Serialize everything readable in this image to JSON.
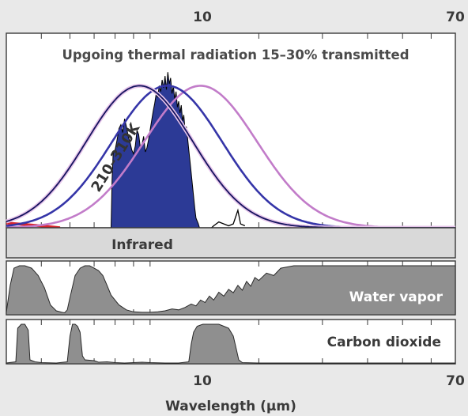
{
  "chart_data": {
    "type": "area",
    "x_scale": "log",
    "x_range": [
      4,
      70
    ],
    "xlabel": "Wavelength (µm)",
    "top_ticks": [
      "10",
      "70"
    ],
    "bottom_ticks": [
      "10",
      "70"
    ],
    "colors": {
      "frame": "#3a3a3a",
      "black_body_210K": "#c27cc9",
      "black_body_260K": "#3535a8",
      "black_body_310K": "#14145e",
      "transmitted": "#2c3a96",
      "infrared_band": "#d9d9d9",
      "absorption_fill": "#8f8f8f",
      "red_curve": "#d8252c"
    },
    "panels": {
      "emission": {
        "title": "Upgoing thermal radiation 15–30% transmitted",
        "curve_label": "210–310K",
        "ylim": [
          0,
          1
        ],
        "series": [
          {
            "key": "210K",
            "peak_um": 13.8,
            "peak": 0.73,
            "sigma": 0.36
          },
          {
            "key": "260K",
            "peak_um": 11.15,
            "peak": 0.73,
            "sigma": 0.35
          },
          {
            "key": "310K",
            "peak_um": 9.35,
            "peak": 0.73,
            "sigma": 0.34
          }
        ],
        "transmitted": {
          "x": [
            7.8,
            7.85,
            7.9,
            8.0,
            8.1,
            8.2,
            8.3,
            8.4,
            8.5,
            8.6,
            8.7,
            8.8,
            8.9,
            9.0,
            9.1,
            9.2,
            9.3,
            9.4,
            9.5,
            9.6,
            9.7,
            9.8,
            9.9,
            10.0,
            10.1,
            10.2,
            10.3,
            10.4,
            10.5,
            10.6,
            10.7,
            10.8,
            10.9,
            11.0,
            11.1,
            11.2,
            11.3,
            11.4,
            11.5,
            11.6,
            11.7,
            11.8,
            11.9,
            12.0,
            12.1,
            12.2,
            12.3,
            12.4,
            12.5,
            12.6,
            12.7,
            12.8,
            12.9,
            13.0,
            13.1,
            13.2,
            13.3,
            13.4,
            13.6,
            13.7
          ],
          "y": [
            0,
            0.25,
            0.38,
            0.4,
            0.45,
            0.51,
            0.53,
            0.49,
            0.56,
            0.52,
            0.47,
            0.44,
            0.4,
            0.38,
            0.42,
            0.5,
            0.48,
            0.41,
            0.43,
            0.47,
            0.39,
            0.41,
            0.45,
            0.5,
            0.55,
            0.6,
            0.64,
            0.69,
            0.67,
            0.73,
            0.7,
            0.76,
            0.72,
            0.78,
            0.71,
            0.8,
            0.74,
            0.77,
            0.69,
            0.73,
            0.66,
            0.7,
            0.62,
            0.65,
            0.59,
            0.63,
            0.55,
            0.58,
            0.5,
            0.52,
            0.46,
            0.4,
            0.34,
            0.28,
            0.22,
            0.16,
            0.1,
            0.05,
            0.02,
            0
          ]
        }
      },
      "infrared": {
        "label": "Infrared"
      },
      "water_vapor": {
        "label": "Water vapor",
        "absorption": {
          "x": [
            4.0,
            4.1,
            4.2,
            4.35,
            4.5,
            4.7,
            4.9,
            5.1,
            5.3,
            5.5,
            5.7,
            5.8,
            5.9,
            6.0,
            6.2,
            6.4,
            6.6,
            6.8,
            7.0,
            7.2,
            7.4,
            7.6,
            7.8,
            8.2,
            8.6,
            9.0,
            9.5,
            10.0,
            10.5,
            11.0,
            11.5,
            12.0,
            12.5,
            13.0,
            13.4,
            13.8,
            14.2,
            14.6,
            15.0,
            15.5,
            16.0,
            16.5,
            17.0,
            17.5,
            18.0,
            18.5,
            19.0,
            19.5,
            20,
            21,
            22,
            23,
            25,
            30,
            40,
            50,
            60,
            70
          ],
          "y": [
            0.05,
            0.6,
            0.95,
            1.0,
            1.0,
            0.95,
            0.8,
            0.55,
            0.2,
            0.08,
            0.05,
            0.04,
            0.1,
            0.35,
            0.8,
            0.95,
            1.0,
            1.0,
            0.95,
            0.9,
            0.8,
            0.6,
            0.4,
            0.2,
            0.1,
            0.06,
            0.05,
            0.05,
            0.06,
            0.08,
            0.12,
            0.1,
            0.15,
            0.22,
            0.18,
            0.3,
            0.25,
            0.38,
            0.3,
            0.46,
            0.38,
            0.52,
            0.45,
            0.6,
            0.5,
            0.68,
            0.58,
            0.76,
            0.7,
            0.85,
            0.8,
            0.95,
            1.0,
            1.0,
            1.0,
            1.0,
            1.0,
            1.0
          ]
        }
      },
      "carbon_dioxide": {
        "label": "Carbon dioxide",
        "absorption": {
          "x": [
            4.0,
            4.25,
            4.3,
            4.4,
            4.5,
            4.6,
            4.65,
            4.8,
            5.0,
            5.5,
            5.9,
            6.0,
            6.1,
            6.2,
            6.3,
            6.4,
            6.5,
            6.6,
            7.0,
            7.2,
            7.6,
            8.0,
            8.5,
            9.0,
            9.5,
            10.0,
            11.0,
            12.0,
            12.8,
            13.0,
            13.2,
            13.5,
            14.0,
            14.5,
            15.0,
            15.5,
            16.0,
            16.5,
            17.0,
            17.3,
            17.6,
            18.0,
            20,
            30,
            50,
            70
          ],
          "y": [
            0.02,
            0.05,
            0.9,
            1.0,
            1.0,
            0.85,
            0.1,
            0.05,
            0.03,
            0.02,
            0.05,
            0.7,
            1.0,
            1.0,
            0.95,
            0.8,
            0.2,
            0.1,
            0.08,
            0.04,
            0.05,
            0.03,
            0.02,
            0.03,
            0.04,
            0.03,
            0.02,
            0.02,
            0.05,
            0.5,
            0.8,
            0.95,
            1.0,
            1.0,
            1.0,
            1.0,
            0.95,
            0.9,
            0.7,
            0.4,
            0.1,
            0.03,
            0.02,
            0.02,
            0.02,
            0.02
          ]
        }
      }
    }
  }
}
